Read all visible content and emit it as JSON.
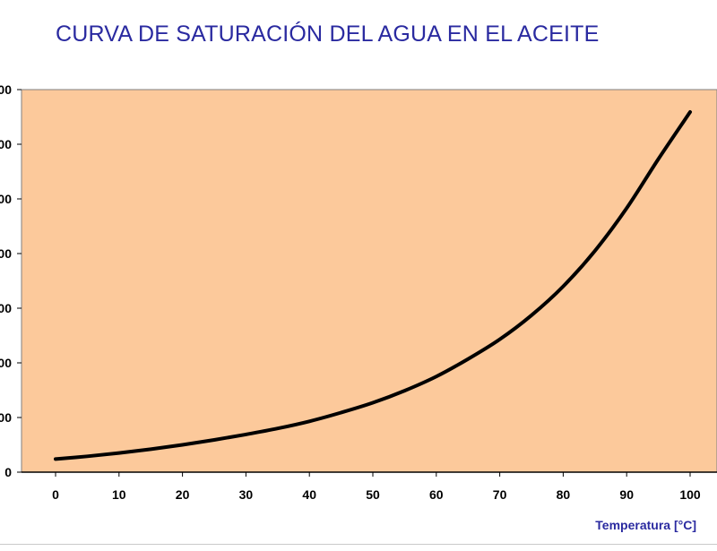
{
  "title": "CURVA DE SATURACIÓN DEL AGUA EN EL ACEITE",
  "colors": {
    "title": "#2a2aa0",
    "plot_background": "#fcc99b",
    "curve": "#000000",
    "axis_title": "#2a2aa0"
  },
  "chart_data": {
    "type": "line",
    "title": "CURVA DE SATURACIÓN DEL AGUA EN EL ACEITE",
    "xlabel": "Temperatura [°C]",
    "ylabel": "",
    "xlim": [
      -5,
      105
    ],
    "ylim": [
      0,
      700
    ],
    "grid": false,
    "legend": "none",
    "x_ticks": [
      {
        "value": 0,
        "label": "0"
      },
      {
        "value": 10,
        "label": "10"
      },
      {
        "value": 20,
        "label": "20"
      },
      {
        "value": 30,
        "label": "30"
      },
      {
        "value": 40,
        "label": "40"
      },
      {
        "value": 50,
        "label": "50"
      },
      {
        "value": 60,
        "label": "60"
      },
      {
        "value": 70,
        "label": "70"
      },
      {
        "value": 80,
        "label": "80"
      },
      {
        "value": 90,
        "label": "90"
      },
      {
        "value": 100,
        "label": "100"
      }
    ],
    "y_ticks": [
      {
        "value": 0,
        "label": "0"
      },
      {
        "value": 100,
        "label": "00"
      },
      {
        "value": 200,
        "label": "00"
      },
      {
        "value": 300,
        "label": "00"
      },
      {
        "value": 400,
        "label": "00"
      },
      {
        "value": 500,
        "label": "00"
      },
      {
        "value": 600,
        "label": "00"
      },
      {
        "value": 700,
        "label": "00"
      }
    ],
    "series": [
      {
        "x": [
          0,
          5,
          10,
          15,
          20,
          25,
          30,
          35,
          40,
          45,
          50,
          55,
          60,
          65,
          70,
          75,
          80,
          85,
          90,
          95,
          100
        ],
        "y": [
          24,
          29,
          35,
          42,
          50,
          59,
          69,
          80,
          93,
          109,
          127,
          149,
          175,
          207,
          243,
          287,
          340,
          405,
          483,
          573,
          659
        ]
      }
    ]
  }
}
